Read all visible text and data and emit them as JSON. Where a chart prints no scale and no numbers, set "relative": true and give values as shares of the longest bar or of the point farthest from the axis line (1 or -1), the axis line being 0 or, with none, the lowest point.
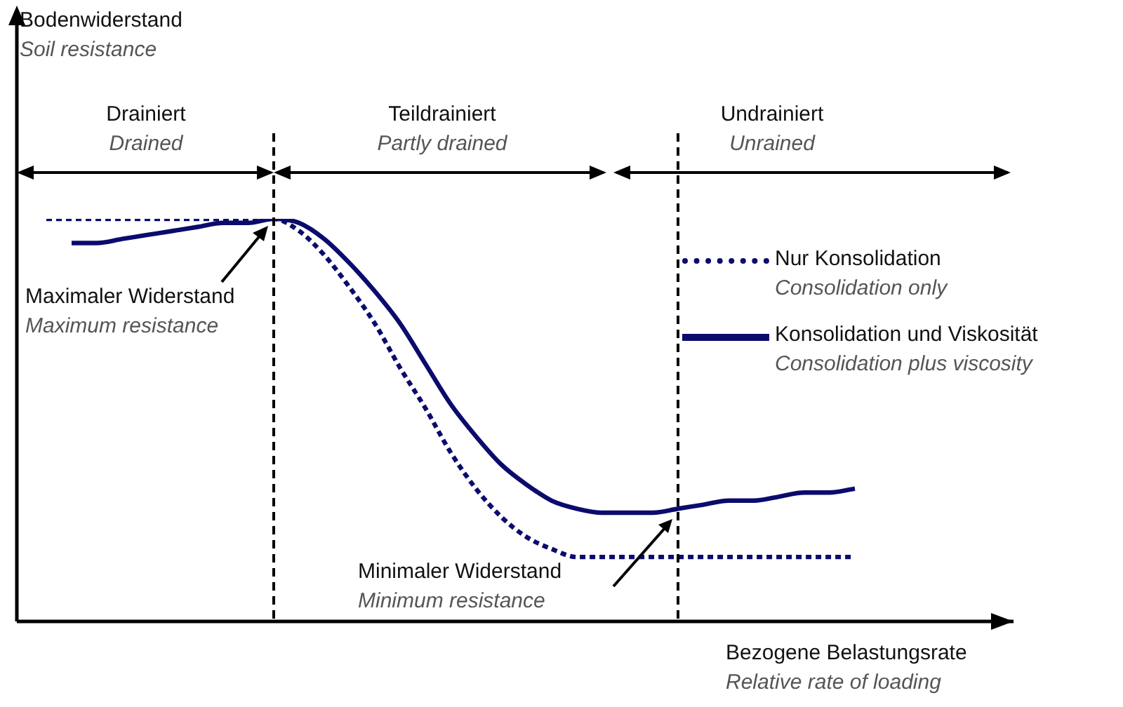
{
  "chart_data": {
    "type": "line",
    "relative": true,
    "xlabel": "Bezogene Belastungsrate\nRelative rate of loading",
    "categories": [
      null,
      null,
      null,
      null,
      null,
      null,
      null,
      null,
      null,
      null,
      null,
      null,
      null,
      null,
      null,
      null,
      null,
      null,
      null,
      null,
      null,
      null,
      null,
      null,
      null,
      null,
      null,
      null,
      null,
      null,
      null,
      null,
      null
    ],
    "series": [
      {
        "name": "Nur Konsolidation\nConsolidation only",
        "color": "#0b0b6e",
        "line_style": "dotted",
        "values": [
          1,
          1,
          1,
          1,
          1,
          1,
          1,
          1,
          1,
          1,
          0.97,
          0.91,
          0.83,
          0.74,
          0.63,
          0.53,
          0.42,
          0.33,
          0.26,
          0.21,
          0.18,
          0.16,
          0.16,
          0.16,
          0.16,
          0.16,
          0.16,
          0.16,
          0.16,
          0.16,
          0.16,
          0.16,
          0.16
        ]
      },
      {
        "name": "Konsolidation und Viskosität\nConsolidation plus viscosity",
        "color": "#0b0b6e",
        "line_style": "solid",
        "values": [
          null,
          0.94,
          0.94,
          0.95,
          0.96,
          0.97,
          0.98,
          0.99,
          0.99,
          1,
          0.99,
          0.95,
          0.89,
          0.82,
          0.74,
          0.64,
          0.54,
          0.46,
          0.39,
          0.34,
          0.3,
          0.28,
          0.27,
          0.27,
          0.27,
          0.28,
          0.29,
          0.3,
          0.3,
          0.31,
          0.32,
          0.32,
          0.33
        ]
      }
    ],
    "annotations": [
      "Drainiert\nDrained",
      "Teildrainiert\nPartly drained",
      "Undrainiert\nUnrained",
      "Maximaler Widerstand\nMaximum resistance",
      "Minimaler Widerstand\nMinimum resistance",
      "Bodenwiderstand\nSoil resistance"
    ],
    "legend": "right",
    "grid": false
  }
}
